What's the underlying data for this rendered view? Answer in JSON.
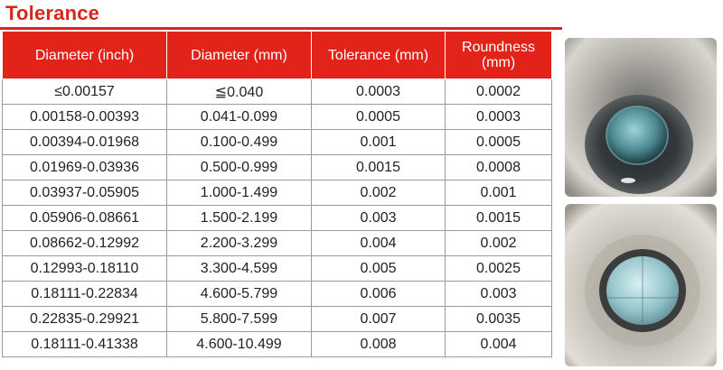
{
  "title": "Tolerance",
  "table": {
    "headers": [
      "Diameter  (inch)",
      "Diameter  (mm)",
      "Tolerance (mm)",
      "Roundness (mm)"
    ],
    "rows": [
      [
        "≤0.00157",
        "≦0.040",
        "0.0003",
        "0.0002"
      ],
      [
        "0.00158-0.00393",
        "0.041-0.099",
        "0.0005",
        "0.0003"
      ],
      [
        "0.00394-0.01968",
        "0.100-0.499",
        "0.001",
        "0.0005"
      ],
      [
        "0.01969-0.03936",
        "0.500-0.999",
        "0.0015",
        "0.0008"
      ],
      [
        "0.03937-0.05905",
        "1.000-1.499",
        "0.002",
        "0.001"
      ],
      [
        "0.05906-0.08661",
        "1.500-2.199",
        "0.003",
        "0.0015"
      ],
      [
        "0.08662-0.12992",
        "2.200-3.299",
        "0.004",
        "0.002"
      ],
      [
        "0.12993-0.18110",
        "3.300-4.599",
        "0.005",
        "0.0025"
      ],
      [
        "0.18111-0.22834",
        "4.600-5.799",
        "0.006",
        "0.003"
      ],
      [
        "0.22835-0.29921",
        "5.800-7.599",
        "0.007",
        "0.0035"
      ],
      [
        "0.18111-0.41338",
        "4.600-10.499",
        "0.008",
        "0.004"
      ]
    ]
  },
  "colors": {
    "accent": "#e2231a",
    "title": "#d9261c",
    "border": "#9a9a9a"
  }
}
